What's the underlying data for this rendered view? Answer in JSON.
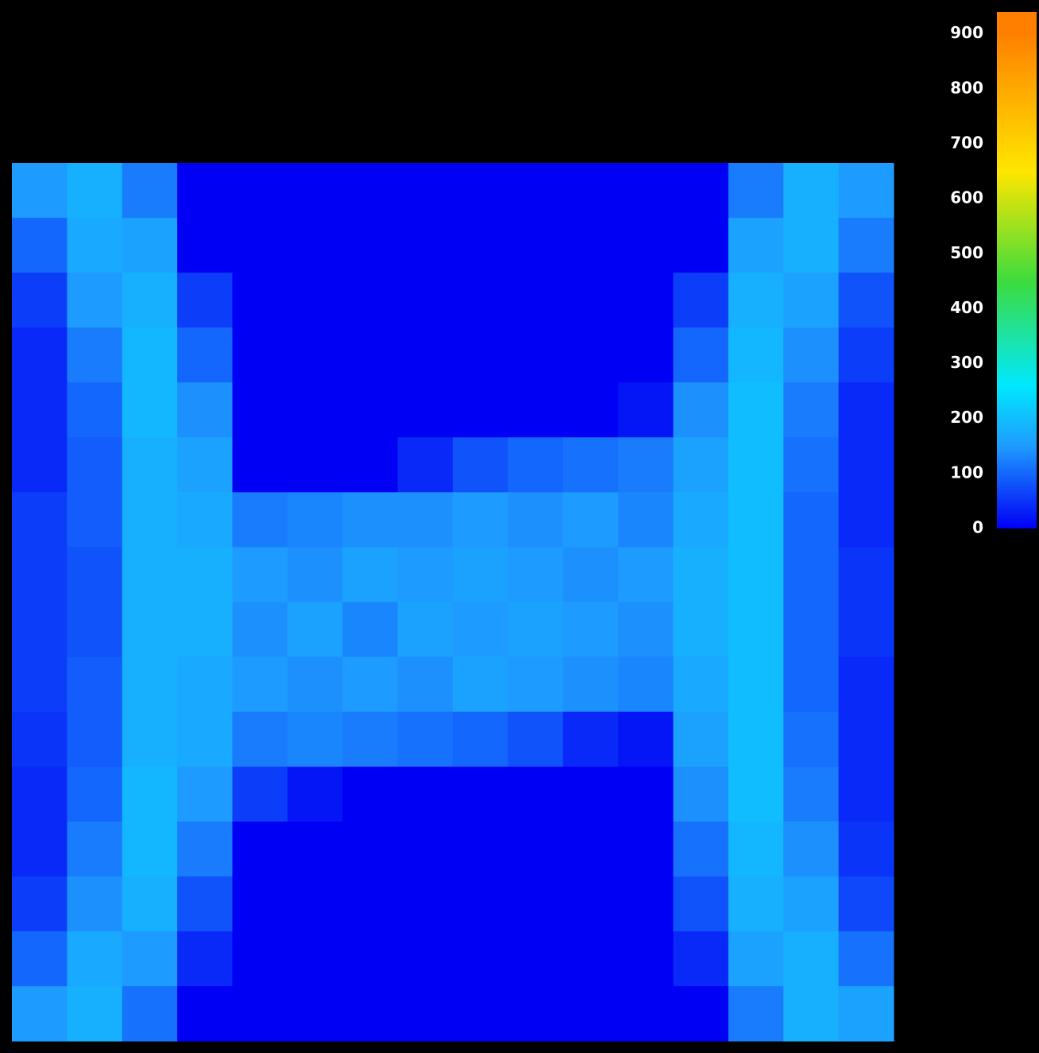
{
  "chart_data": {
    "type": "heatmap",
    "values": [
      [
        150,
        180,
        120,
        0,
        0,
        0,
        0,
        0,
        0,
        0,
        0,
        0,
        0,
        120,
        180,
        150
      ],
      [
        100,
        170,
        160,
        0,
        0,
        0,
        0,
        0,
        0,
        0,
        0,
        0,
        0,
        160,
        180,
        120
      ],
      [
        60,
        150,
        180,
        60,
        0,
        0,
        0,
        0,
        0,
        0,
        0,
        0,
        60,
        180,
        160,
        80
      ],
      [
        40,
        120,
        190,
        100,
        0,
        0,
        0,
        0,
        0,
        0,
        0,
        0,
        100,
        190,
        140,
        60
      ],
      [
        40,
        100,
        190,
        140,
        0,
        0,
        0,
        0,
        0,
        0,
        0,
        20,
        140,
        200,
        120,
        40
      ],
      [
        40,
        90,
        180,
        160,
        0,
        0,
        0,
        40,
        80,
        100,
        110,
        120,
        160,
        200,
        110,
        40
      ],
      [
        60,
        90,
        180,
        170,
        120,
        130,
        140,
        140,
        150,
        140,
        150,
        130,
        170,
        200,
        100,
        40
      ],
      [
        60,
        80,
        180,
        180,
        150,
        140,
        160,
        150,
        160,
        150,
        140,
        150,
        180,
        200,
        100,
        50
      ],
      [
        60,
        80,
        180,
        180,
        140,
        160,
        130,
        160,
        150,
        160,
        150,
        140,
        180,
        200,
        100,
        50
      ],
      [
        60,
        90,
        180,
        170,
        150,
        140,
        150,
        140,
        160,
        150,
        140,
        130,
        170,
        200,
        100,
        40
      ],
      [
        50,
        90,
        180,
        170,
        120,
        130,
        120,
        110,
        100,
        80,
        40,
        20,
        160,
        200,
        110,
        40
      ],
      [
        40,
        100,
        190,
        150,
        60,
        20,
        0,
        0,
        0,
        0,
        0,
        0,
        140,
        200,
        120,
        40
      ],
      [
        40,
        120,
        190,
        120,
        0,
        0,
        0,
        0,
        0,
        0,
        0,
        0,
        110,
        190,
        140,
        50
      ],
      [
        60,
        140,
        180,
        80,
        0,
        0,
        0,
        0,
        0,
        0,
        0,
        0,
        80,
        180,
        160,
        70
      ],
      [
        100,
        170,
        150,
        40,
        0,
        0,
        0,
        0,
        0,
        0,
        0,
        0,
        40,
        160,
        180,
        110
      ],
      [
        150,
        180,
        110,
        0,
        0,
        0,
        0,
        0,
        0,
        0,
        0,
        0,
        0,
        120,
        180,
        160
      ]
    ],
    "colormap": [
      [
        0,
        "#0000f5"
      ],
      [
        150,
        "#1e9bff"
      ],
      [
        260,
        "#00e8ff"
      ],
      [
        450,
        "#3ddc3d"
      ],
      [
        650,
        "#ffe600"
      ],
      [
        900,
        "#ff8000"
      ]
    ],
    "colorbar": {
      "ylim": [
        0,
        940
      ],
      "yticks": [
        0,
        100,
        200,
        300,
        400,
        500,
        600,
        700,
        800,
        900
      ]
    }
  }
}
